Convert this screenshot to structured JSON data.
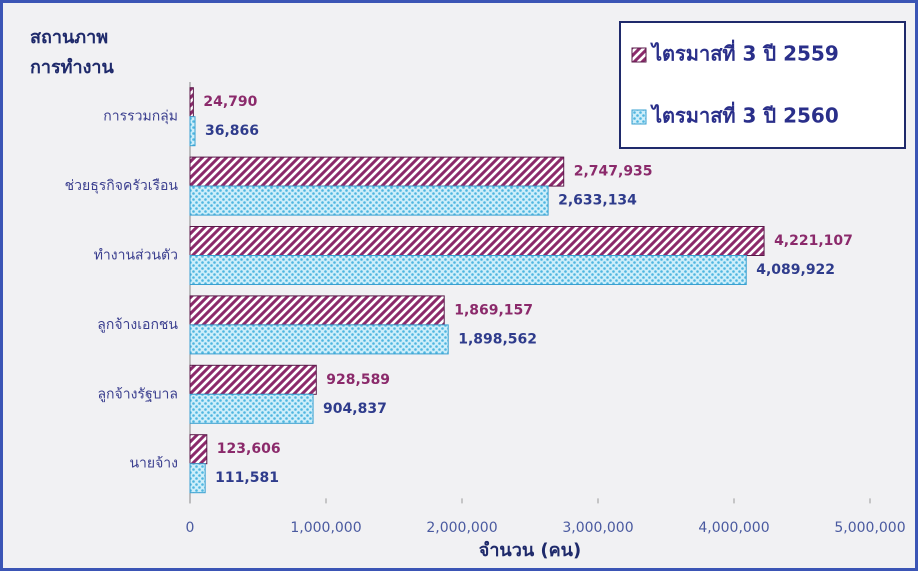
{
  "chart_data": {
    "type": "hbar",
    "title_lines": [
      "สถานภาพ",
      "การทำงาน"
    ],
    "xlabel": "จำนวน (คน)",
    "categories": [
      "การรวมกลุ่ม",
      "ช่วยธุรกิจครัวเรือน",
      "ทำงานส่วนตัว",
      "ลูกจ้างเอกชน",
      "ลูกจ้างรัฐบาล",
      "นายจ้าง"
    ],
    "series": [
      {
        "name": "ไตรมาสที่ 3 ปี 2559",
        "color": "#8b2a6b",
        "pattern": "hatch",
        "label_color": "#8b2a6b",
        "values": [
          24790,
          2747935,
          4221107,
          1869157,
          928589,
          123606
        ],
        "value_labels": [
          "24,790",
          "2,747,935",
          "4,221,107",
          "1,869,157",
          "928,589",
          "123,606"
        ]
      },
      {
        "name": "ไตรมาสที่ 3 ปี 2560",
        "color": "#4fb6e0",
        "pattern": "dots",
        "label_color": "#2f3c8c",
        "values": [
          36866,
          2633134,
          4089922,
          1898562,
          904837,
          111581
        ],
        "value_labels": [
          "36,866",
          "2,633,134",
          "4,089,922",
          "1,898,562",
          "904,837",
          "111,581"
        ]
      }
    ],
    "xlim": [
      0,
      5000000
    ],
    "xticks": [
      0,
      {
        "value": 1000000,
        "label": "1,000,000"
      },
      {
        "value": 2000000,
        "label": "2,000,000"
      },
      {
        "value": 3000000,
        "label": "3,000,000"
      },
      {
        "value": 4000000,
        "label": "4,000,000"
      },
      {
        "value": 5000000,
        "label": "5,000,000"
      }
    ],
    "legend": "upper right"
  }
}
